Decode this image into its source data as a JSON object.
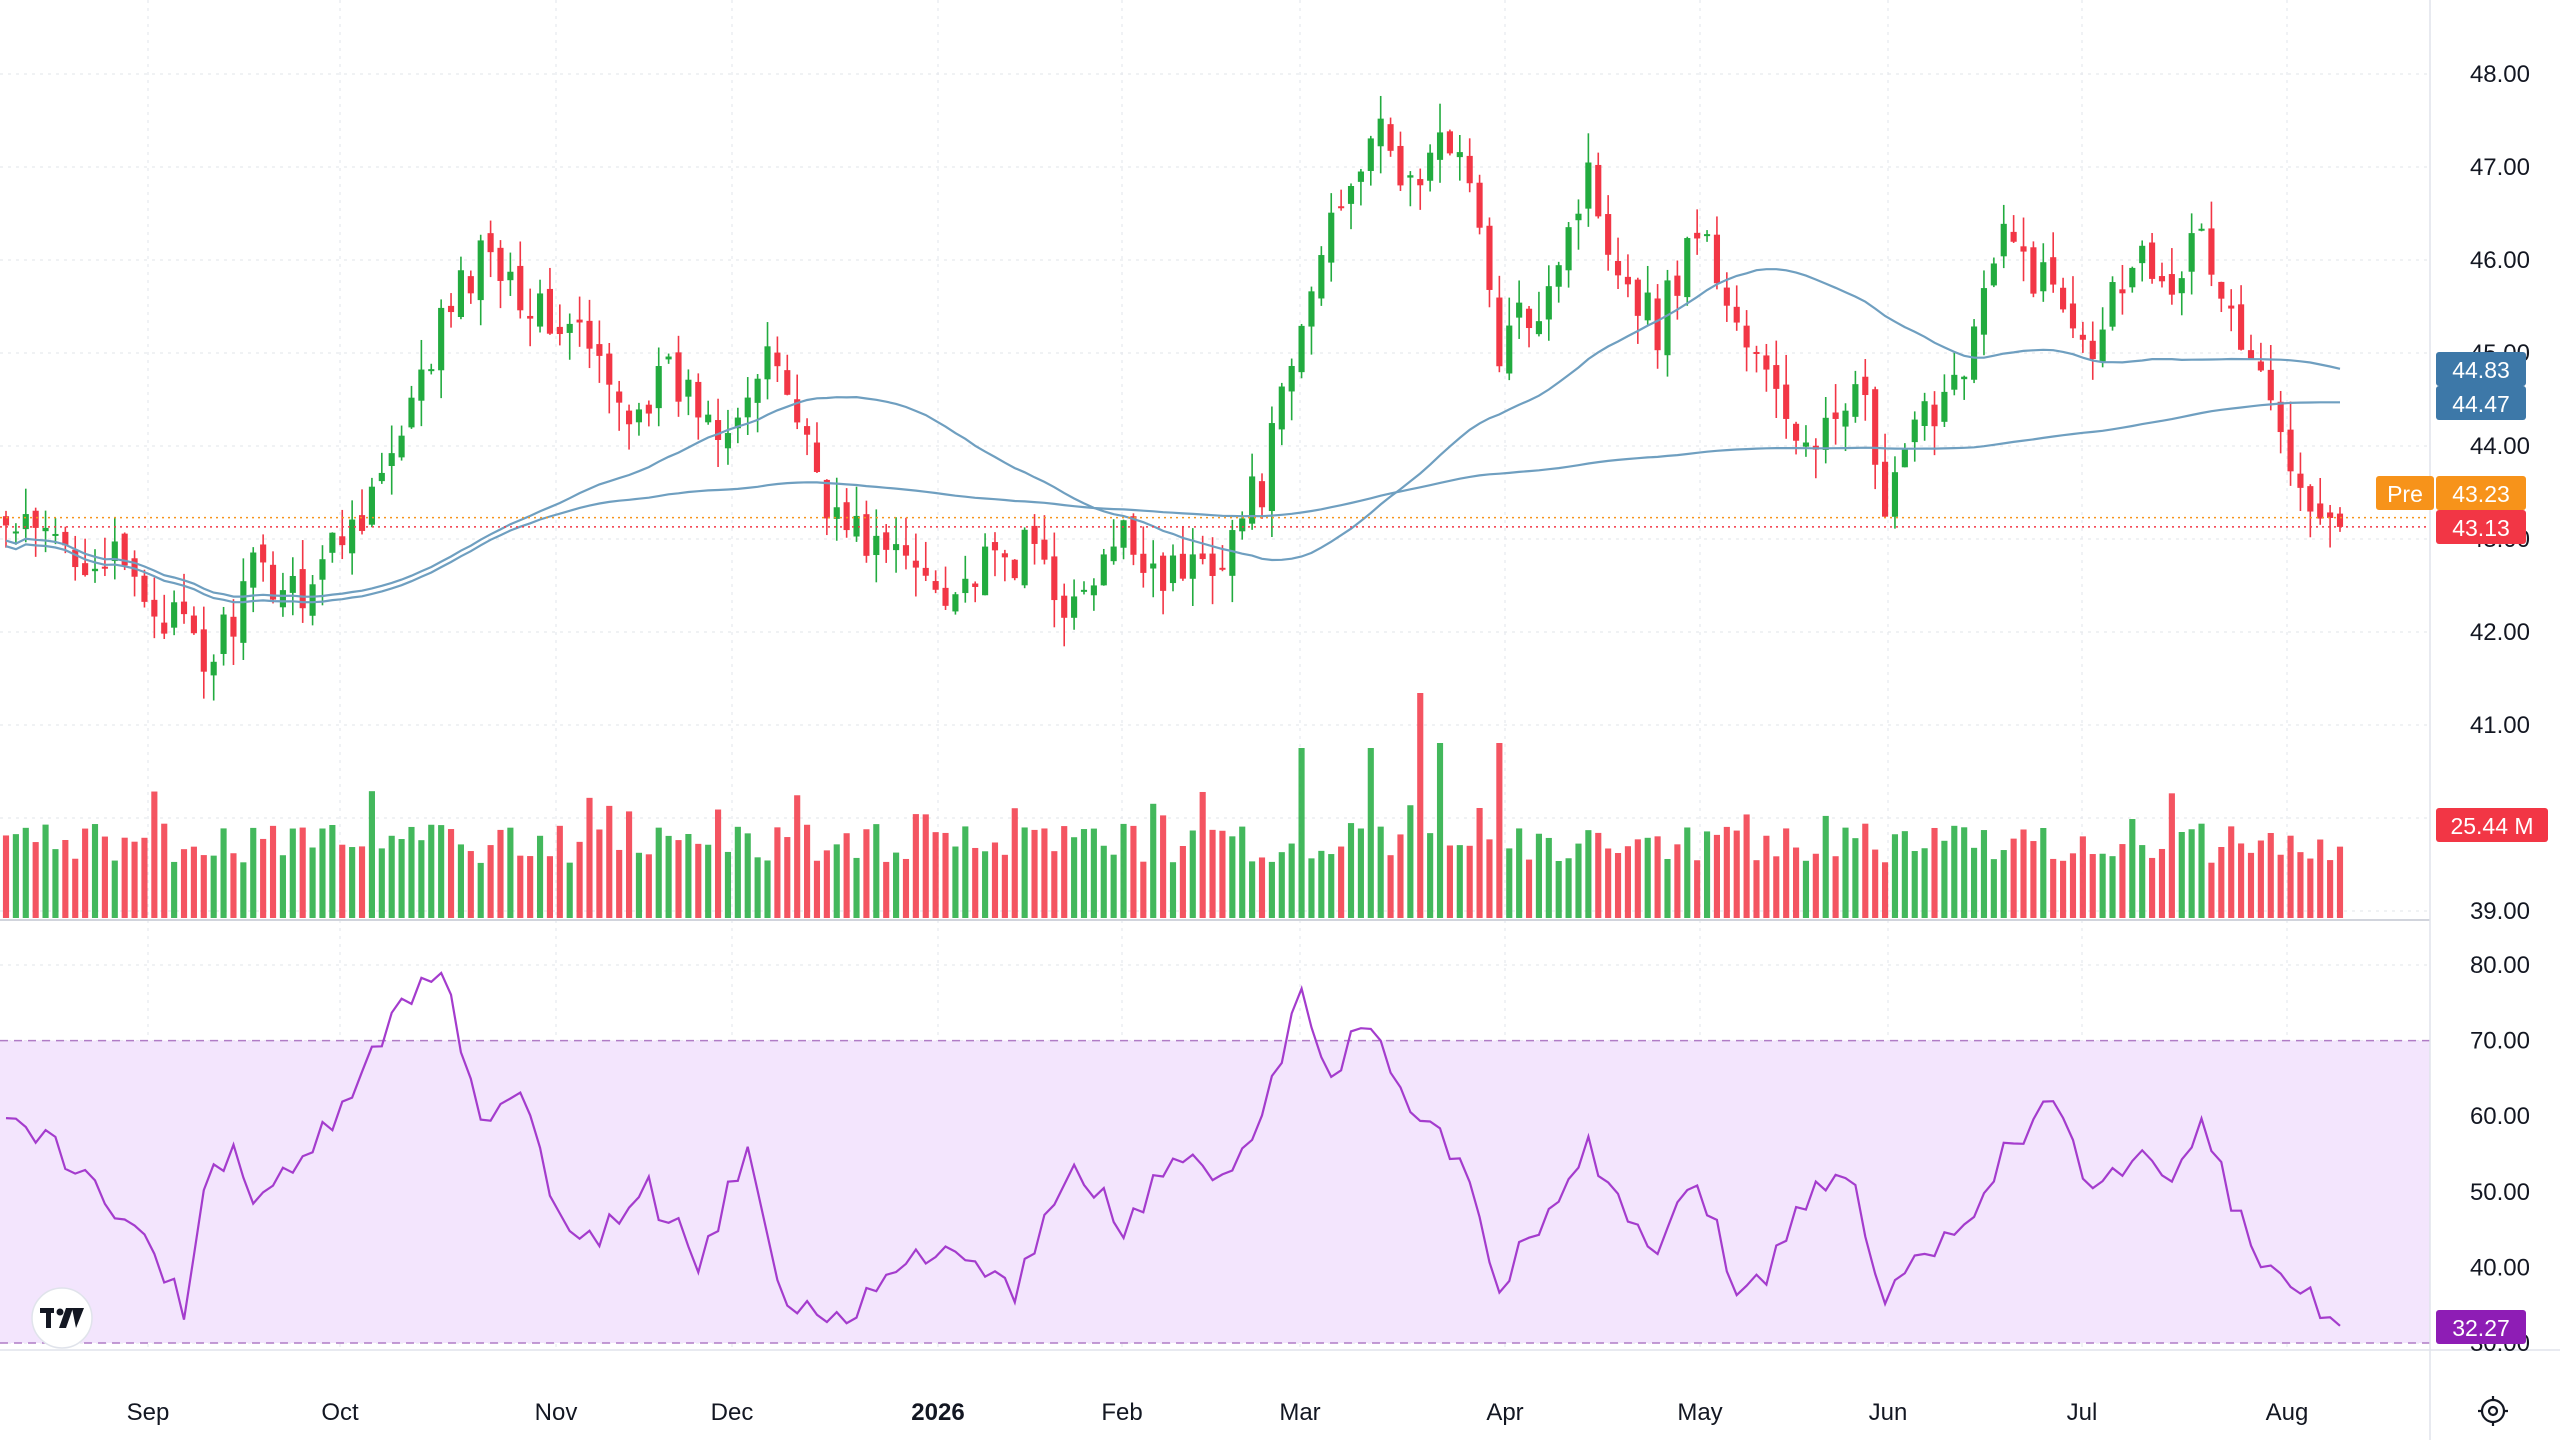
{
  "colors": {
    "up": "#22ab3f",
    "down": "#f23645",
    "ma_line": "#6f9fc0",
    "rsi_line": "#a43ccd",
    "rsi_band": "#f3e5fd",
    "pre": "#f7931a",
    "last": "#f23645",
    "ma_label": "#3d78a8",
    "rsi_label": "#8e1db5",
    "grid": "#e6e9ee"
  },
  "price_axis": {
    "ticks": [
      "48.00",
      "47.00",
      "46.00",
      "45.00",
      "44.00",
      "43.00",
      "42.00",
      "41.00",
      "40.00",
      "39.00"
    ]
  },
  "rsi_axis": {
    "ticks": [
      "80.00",
      "70.00",
      "60.00",
      "50.00",
      "40.00",
      "30.00"
    ],
    "upper_band": 70,
    "lower_band": 30
  },
  "x_axis": {
    "labels": [
      {
        "text": "Sep",
        "bold": false
      },
      {
        "text": "Oct",
        "bold": false
      },
      {
        "text": "Nov",
        "bold": false
      },
      {
        "text": "Dec",
        "bold": false
      },
      {
        "text": "2026",
        "bold": true
      },
      {
        "text": "Feb",
        "bold": false
      },
      {
        "text": "Mar",
        "bold": false
      },
      {
        "text": "Apr",
        "bold": false
      },
      {
        "text": "May",
        "bold": false
      },
      {
        "text": "Jun",
        "bold": false
      },
      {
        "text": "Jul",
        "bold": false
      },
      {
        "text": "Aug",
        "bold": false
      }
    ]
  },
  "labels": {
    "ma1": "44.83",
    "ma2": "44.47",
    "pre_tag": "Pre",
    "pre_value": "43.23",
    "last_value": "43.13",
    "volume": "25.44 M",
    "rsi": "32.27"
  },
  "chart_data": {
    "type": "candlestick",
    "price_range": [
      38.8,
      48.3
    ],
    "last_price": 43.13,
    "pre_market_price": 43.23,
    "ma_short_last": 44.83,
    "ma_long_last": 44.47,
    "volume_last": "25.44 M",
    "rsi_last": 32.27,
    "rsi_range": [
      29,
      82
    ],
    "close_anchors": [
      [
        0,
        43.1
      ],
      [
        10,
        42.8
      ],
      [
        18,
        42.0
      ],
      [
        20,
        41.6
      ],
      [
        25,
        42.6
      ],
      [
        30,
        42.5
      ],
      [
        35,
        43.2
      ],
      [
        40,
        44.0
      ],
      [
        44,
        45.3
      ],
      [
        49,
        46.2
      ],
      [
        54,
        45.4
      ],
      [
        58,
        45.2
      ],
      [
        62,
        44.4
      ],
      [
        67,
        44.7
      ],
      [
        72,
        44.3
      ],
      [
        78,
        44.9
      ],
      [
        84,
        43.2
      ],
      [
        90,
        42.8
      ],
      [
        96,
        42.5
      ],
      [
        104,
        42.9
      ],
      [
        108,
        42.2
      ],
      [
        113,
        43.0
      ],
      [
        118,
        42.6
      ],
      [
        123,
        42.9
      ],
      [
        127,
        43.6
      ],
      [
        130,
        44.8
      ],
      [
        134,
        46.5
      ],
      [
        138,
        47.4
      ],
      [
        142,
        46.8
      ],
      [
        147,
        47.4
      ],
      [
        151,
        45.0
      ],
      [
        155,
        45.6
      ],
      [
        160,
        46.9
      ],
      [
        163,
        46.0
      ],
      [
        167,
        45.3
      ],
      [
        171,
        46.4
      ],
      [
        175,
        45.3
      ],
      [
        178,
        44.7
      ],
      [
        183,
        43.8
      ],
      [
        187,
        44.9
      ],
      [
        190,
        43.2
      ],
      [
        193,
        44.1
      ],
      [
        198,
        45.0
      ],
      [
        202,
        46.2
      ],
      [
        207,
        45.7
      ],
      [
        211,
        45.2
      ],
      [
        215,
        46.1
      ],
      [
        219,
        45.9
      ],
      [
        222,
        46.2
      ],
      [
        226,
        45.1
      ],
      [
        229,
        44.4
      ],
      [
        232,
        43.8
      ],
      [
        234,
        43.3
      ],
      [
        236,
        43.13
      ]
    ],
    "rsi_anchors": [
      [
        0,
        59
      ],
      [
        5,
        56
      ],
      [
        10,
        49
      ],
      [
        15,
        42
      ],
      [
        18,
        34
      ],
      [
        20,
        50
      ],
      [
        23,
        57
      ],
      [
        25,
        47
      ],
      [
        30,
        55
      ],
      [
        35,
        62
      ],
      [
        40,
        75
      ],
      [
        44,
        80
      ],
      [
        48,
        60
      ],
      [
        52,
        64
      ],
      [
        56,
        46
      ],
      [
        60,
        44
      ],
      [
        65,
        50
      ],
      [
        70,
        41
      ],
      [
        75,
        55
      ],
      [
        78,
        37
      ],
      [
        84,
        33
      ],
      [
        90,
        40
      ],
      [
        96,
        42
      ],
      [
        102,
        37
      ],
      [
        108,
        54
      ],
      [
        113,
        45
      ],
      [
        118,
        55
      ],
      [
        123,
        51
      ],
      [
        127,
        60
      ],
      [
        131,
        76
      ],
      [
        134,
        66
      ],
      [
        138,
        73
      ],
      [
        142,
        60
      ],
      [
        147,
        55
      ],
      [
        151,
        38
      ],
      [
        155,
        46
      ],
      [
        160,
        57
      ],
      [
        163,
        48
      ],
      [
        167,
        42
      ],
      [
        171,
        52
      ],
      [
        175,
        37
      ],
      [
        178,
        39
      ],
      [
        183,
        52
      ],
      [
        187,
        50
      ],
      [
        190,
        35
      ],
      [
        193,
        40
      ],
      [
        198,
        45
      ],
      [
        202,
        55
      ],
      [
        207,
        63
      ],
      [
        211,
        49
      ],
      [
        215,
        55
      ],
      [
        219,
        53
      ],
      [
        222,
        60
      ],
      [
        226,
        46
      ],
      [
        229,
        40
      ],
      [
        232,
        36
      ],
      [
        234,
        35
      ],
      [
        236,
        32.27
      ]
    ]
  }
}
